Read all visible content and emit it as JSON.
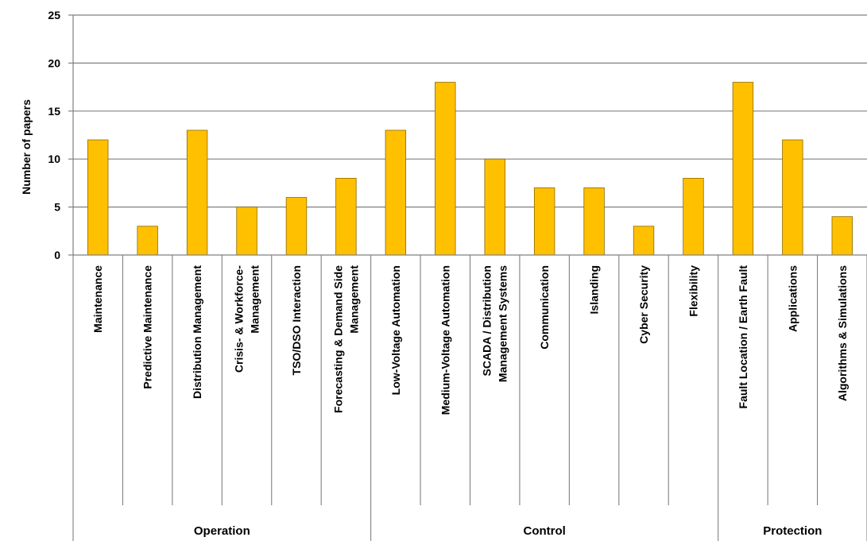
{
  "chart_data": {
    "type": "bar",
    "ylabel": "Number of papers",
    "ylim": [
      0,
      25
    ],
    "yticks": [
      0,
      5,
      10,
      15,
      20,
      25
    ],
    "grid": true,
    "categories": [
      [
        "Maintenance"
      ],
      [
        "Predictive Maintenance"
      ],
      [
        "Distribution Management"
      ],
      [
        "Crisis- & Workforce-",
        "Management"
      ],
      [
        "TSO/DSO Interaction"
      ],
      [
        "Forecasting & Demand Side",
        "Management"
      ],
      [
        "Low-Voltage Automation"
      ],
      [
        "Medium-Voltage Automation"
      ],
      [
        "SCADA / Distribution",
        "Management Systems"
      ],
      [
        "Communication"
      ],
      [
        "Islanding"
      ],
      [
        "Cyber Security"
      ],
      [
        "Flexibility"
      ],
      [
        "Fault Location / Earth Fault"
      ],
      [
        "Applications"
      ],
      [
        "Algorithms & Simulations"
      ]
    ],
    "values": [
      12,
      3,
      13,
      5,
      6,
      8,
      13,
      18,
      10,
      7,
      7,
      3,
      8,
      18,
      12,
      4
    ],
    "groups": [
      {
        "label": "Operation",
        "start": 0,
        "end": 5
      },
      {
        "label": "Control",
        "start": 6,
        "end": 12
      },
      {
        "label": "Protection",
        "start": 13,
        "end": 15
      }
    ],
    "colors": {
      "bar_fill": "#FFC000",
      "bar_stroke": "#8C6A00",
      "grid": "#808080",
      "axis": "#808080"
    }
  }
}
